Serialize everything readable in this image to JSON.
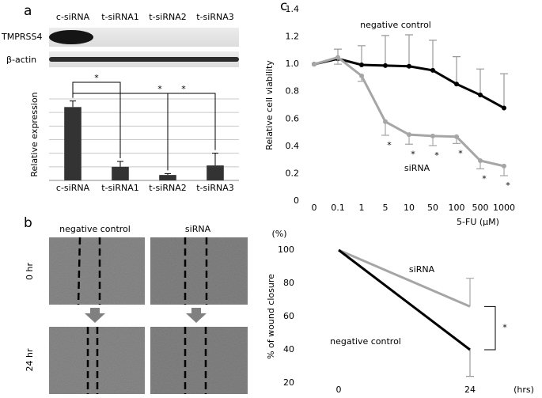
{
  "panel_labels": [
    "a",
    "b",
    "c"
  ],
  "blot": {
    "lanes": [
      "c-siRNA",
      "t-siRNA1",
      "t-siRNA2",
      "t-siRNA3"
    ],
    "rows": [
      "TMPRSS4",
      "β-actin"
    ]
  },
  "wound_images": {
    "columns": [
      "negative control",
      "siRNA"
    ],
    "rows": [
      "0 hr",
      "24 hr"
    ]
  },
  "chart_data": [
    {
      "type": "bar",
      "y_label": "Relative expression",
      "categories": [
        "c-siRNA",
        "t-siRNA1",
        "t-siRNA2",
        "t-siRNA3"
      ],
      "values": [
        5.4,
        1.0,
        0.4,
        1.1
      ],
      "errors": [
        0.45,
        0.4,
        0.1,
        0.9
      ],
      "color": "#333333",
      "ylim": [
        0,
        6
      ],
      "yticks": [
        0,
        1,
        2,
        3,
        4,
        5,
        6
      ],
      "grid": true,
      "tick_labels": false,
      "significance": [
        "*",
        "*",
        "*"
      ]
    },
    {
      "type": "line",
      "x_label": "5-FU (μM)",
      "y_label": "Relative cell viability",
      "categories": [
        "0",
        "0.1",
        "1",
        "5",
        "10",
        "50",
        "100",
        "500",
        "1000"
      ],
      "ylim": [
        0,
        1.4
      ],
      "yticks": [
        0,
        0.2,
        0.4,
        0.6,
        0.8,
        {
          "value": 1,
          "label": "1.0"
        },
        1.2,
        1.4
      ],
      "grid": false,
      "tick_labels": true,
      "series": [
        {
          "name": "negative control",
          "color": "#000000",
          "error_direction": "up",
          "values": [
            1.0,
            1.04,
            0.995,
            0.99,
            0.985,
            0.955,
            0.855,
            0.775,
            0.68
          ],
          "errors": [
            0,
            0.07,
            0.14,
            0.22,
            0.23,
            0.22,
            0.2,
            0.19,
            0.25
          ]
        },
        {
          "name": "siRNA",
          "color": "#a6a6a6",
          "error_direction": "down",
          "values": [
            1.0,
            1.05,
            0.915,
            0.58,
            0.485,
            0.475,
            0.47,
            0.295,
            0.255
          ],
          "errors": [
            0,
            0.05,
            0.04,
            0.1,
            0.07,
            0.07,
            0.05,
            0.06,
            0.07
          ]
        }
      ],
      "significance": [
        null,
        null,
        null,
        "*",
        "*",
        "*",
        "*",
        "*",
        "*"
      ]
    },
    {
      "type": "line",
      "x_label": "(hrs)",
      "y_label": "% of wound closure",
      "y_unit": "(%)",
      "categories": [
        "0",
        "24"
      ],
      "ylim": [
        20,
        100
      ],
      "yticks": [
        20,
        40,
        60,
        80,
        100
      ],
      "grid": false,
      "tick_labels": true,
      "series": [
        {
          "name": "siRNA",
          "color": "#a6a6a6",
          "error_direction": "up",
          "values": [
            100,
            66
          ],
          "errors": [
            0,
            17
          ]
        },
        {
          "name": "negative control",
          "color": "#000000",
          "error_direction": "down",
          "values": [
            100,
            40
          ],
          "errors": [
            0,
            16
          ]
        }
      ],
      "significance_label": "*"
    }
  ]
}
